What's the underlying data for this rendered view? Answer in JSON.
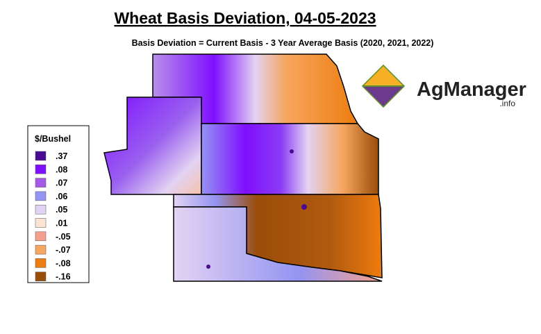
{
  "title": "Wheat Basis Deviation, 04-05-2023",
  "subtitle": "Basis Deviation = Current Basis - 3 Year Average Basis (2020, 2021, 2022)",
  "legend": {
    "title": "$/Bushel",
    "items": [
      {
        "label": ".37",
        "color": "#4a0a94"
      },
      {
        "label": ".08",
        "color": "#7f0fff"
      },
      {
        "label": ".07",
        "color": "#a55be8"
      },
      {
        "label": ".06",
        "color": "#9494f2"
      },
      {
        "label": ".05",
        "color": "#e3d3f3"
      },
      {
        "label": ".01",
        "color": "#fbe4d3"
      },
      {
        "label": "-.05",
        "color": "#f5a08e"
      },
      {
        "label": "-.07",
        "color": "#f6a65e"
      },
      {
        "label": "-.08",
        "color": "#ee7c0e"
      },
      {
        "label": "-.16",
        "color": "#9a4d09"
      }
    ]
  },
  "logo": {
    "name": "AgManager",
    "suffix": ".info"
  }
}
